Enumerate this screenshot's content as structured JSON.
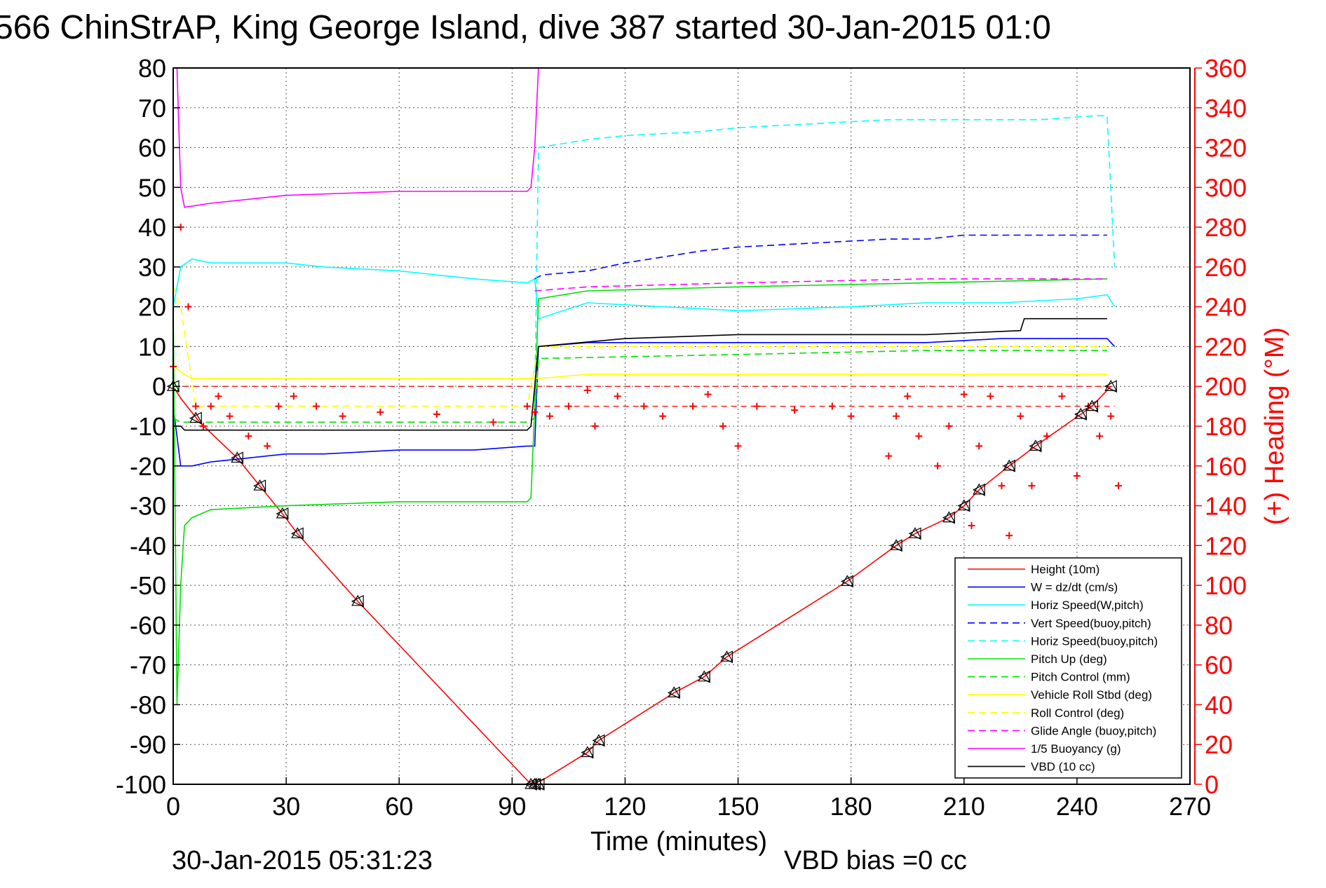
{
  "chart_data": {
    "type": "line",
    "title": "566 ChinStrAP, King George Island, dive 387 started 30-Jan-2015 01:0",
    "xlabel": "Time (minutes)",
    "ylabel_left": "",
    "ylabel_right": "(+) Heading (°M)",
    "footer_left": "30-Jan-2015 05:31:23",
    "footer_right": "VBD bias =0 cc",
    "xlim": [
      0,
      270
    ],
    "ylim_left": [
      -100,
      80
    ],
    "ylim_right": [
      0,
      360
    ],
    "x_ticks": [
      "0",
      "30",
      "60",
      "90",
      "120",
      "150",
      "180",
      "210",
      "240",
      "270"
    ],
    "y_ticks_left": [
      "80",
      "70",
      "60",
      "50",
      "40",
      "30",
      "20",
      "10",
      "0",
      "-10",
      "-20",
      "-30",
      "-40",
      "-50",
      "-60",
      "-70",
      "-80",
      "-90",
      "-100"
    ],
    "y_ticks_right": [
      "360",
      "340",
      "320",
      "300",
      "280",
      "260",
      "240",
      "220",
      "200",
      "180",
      "160",
      "140",
      "120",
      "100",
      "80",
      "60",
      "40",
      "20",
      "0"
    ],
    "grid": true,
    "legend_position": "bottom-right",
    "colors": {
      "red": "#ff0000",
      "blue": "#0000ff",
      "cyan": "#00ffff",
      "green": "#00e000",
      "yellow": "#ffff00",
      "magenta": "#ff00ff",
      "black": "#000000"
    },
    "series": [
      {
        "name": "Height (10m)",
        "color": "#ff0000",
        "style": "solid",
        "x": [
          0,
          2,
          7,
          17,
          23,
          29,
          33,
          49,
          95,
          98,
          110,
          113,
          133,
          141,
          147,
          179,
          192,
          197,
          206,
          210,
          214,
          222,
          229,
          241,
          244,
          249
        ],
        "y": [
          0,
          -3,
          -9,
          -18,
          -25,
          -32,
          -37,
          -54,
          -100,
          -99,
          -92,
          -89,
          -77,
          -73,
          -68,
          -49,
          -40,
          -37,
          -33,
          -30,
          -26,
          -20,
          -15,
          -7,
          -5,
          0
        ]
      },
      {
        "name": "W = dz/dt (cm/s)",
        "color": "#0000ff",
        "style": "solid",
        "x": [
          0,
          2,
          5,
          10,
          20,
          30,
          40,
          60,
          80,
          94,
          96,
          97,
          110,
          130,
          150,
          180,
          200,
          220,
          240,
          248,
          250
        ],
        "y": [
          -5,
          -20,
          -20,
          -19,
          -18,
          -17,
          -17,
          -16,
          -16,
          -15,
          -15,
          10,
          11,
          11,
          11,
          11,
          11,
          12,
          12,
          12,
          10
        ]
      },
      {
        "name": "Horiz Speed(W,pitch)",
        "color": "#00ffff",
        "style": "solid",
        "x": [
          0,
          2,
          5,
          10,
          20,
          30,
          40,
          60,
          80,
          94,
          96,
          97,
          110,
          130,
          150,
          180,
          200,
          220,
          240,
          248,
          250
        ],
        "y": [
          20,
          30,
          32,
          31,
          31,
          31,
          30,
          29,
          27,
          26,
          27,
          17,
          21,
          20,
          19,
          20,
          21,
          21,
          22,
          23,
          20
        ]
      },
      {
        "name": "Vert Speed(buoy,pitch)",
        "color": "#0000ff",
        "style": "dashed",
        "x": [
          96,
          98,
          110,
          120,
          140,
          150,
          170,
          190,
          200,
          210,
          220,
          240,
          248
        ],
        "y": [
          27,
          28,
          29,
          31,
          34,
          35,
          36,
          37,
          37,
          38,
          38,
          38,
          38
        ]
      },
      {
        "name": "Horiz Speed(buoy,pitch)",
        "color": "#00ffff",
        "style": "dashed",
        "x": [
          96,
          97,
          110,
          120,
          140,
          150,
          170,
          190,
          210,
          230,
          245,
          248,
          250
        ],
        "y": [
          -5,
          60,
          62,
          63,
          64,
          65,
          66,
          67,
          67,
          67,
          68,
          68,
          30
        ]
      },
      {
        "name": "Pitch Up (deg)",
        "color": "#00e000",
        "style": "solid",
        "x": [
          0,
          1,
          2,
          3,
          5,
          10,
          30,
          60,
          94,
          95,
          96,
          97,
          110,
          150,
          200,
          248
        ],
        "y": [
          20,
          -80,
          -50,
          -35,
          -33,
          -31,
          -30,
          -29,
          -29,
          -28,
          -5,
          22,
          24,
          25,
          26,
          27
        ]
      },
      {
        "name": "Pitch Control (mm)",
        "color": "#00e000",
        "style": "dashed",
        "x": [
          0,
          2,
          94,
          96,
          97,
          150,
          200,
          248
        ],
        "y": [
          -8,
          -9,
          -9,
          -8,
          7,
          8,
          9,
          9
        ]
      },
      {
        "name": "Vehicle Roll Stbd (deg)",
        "color": "#ffff00",
        "style": "solid",
        "x": [
          0,
          3,
          5,
          30,
          60,
          94,
          97,
          110,
          150,
          200,
          248
        ],
        "y": [
          5,
          3,
          2,
          2,
          2,
          2,
          2,
          3,
          3,
          3,
          3
        ]
      },
      {
        "name": "Roll Control (deg)",
        "color": "#ffff00",
        "style": "dashed",
        "x": [
          0,
          2,
          6,
          30,
          94,
          97,
          150,
          248
        ],
        "y": [
          25,
          20,
          -5,
          -5,
          -5,
          10,
          10,
          10
        ]
      },
      {
        "name": "Glide Angle (buoy,pitch)",
        "color": "#ff00ff",
        "style": "dashed",
        "x": [
          96,
          110,
          150,
          200,
          248
        ],
        "y": [
          24,
          25,
          26,
          27,
          27
        ]
      },
      {
        "name": "1/5 Buoyancy (g)",
        "color": "#ff00ff",
        "style": "solid",
        "x": [
          1,
          2,
          3,
          10,
          30,
          60,
          94,
          95,
          96,
          97
        ],
        "y": [
          80,
          50,
          45,
          46,
          48,
          49,
          49,
          50,
          60,
          80
        ]
      },
      {
        "name": "VBD (10 cc)",
        "color": "#000000",
        "style": "solid",
        "x": [
          0,
          2,
          3,
          94,
          95,
          96,
          97,
          120,
          150,
          180,
          200,
          225,
          226,
          248
        ],
        "y": [
          -10,
          -10,
          -11,
          -11,
          -10,
          0,
          10,
          12,
          13,
          13,
          13,
          14,
          17,
          17
        ]
      },
      {
        "name": "Heading",
        "color": "#ff0000",
        "style": "markers",
        "axis": "right",
        "x": [
          0,
          2,
          4,
          6,
          8,
          10,
          12,
          15,
          20,
          25,
          28,
          32,
          38,
          45,
          55,
          70,
          85,
          94,
          96,
          100,
          105,
          110,
          112,
          118,
          125,
          130,
          138,
          142,
          146,
          150,
          155,
          165,
          175,
          180,
          190,
          192,
          195,
          198,
          203,
          206,
          210,
          212,
          214,
          217,
          220,
          222,
          225,
          228,
          232,
          236,
          240,
          243,
          246,
          249,
          251
        ],
        "y": [
          210,
          280,
          240,
          190,
          180,
          190,
          195,
          185,
          175,
          170,
          190,
          195,
          190,
          185,
          187,
          186,
          182,
          190,
          187,
          185,
          190,
          198,
          180,
          195,
          190,
          185,
          190,
          196,
          180,
          170,
          190,
          188,
          190,
          185,
          165,
          185,
          195,
          175,
          160,
          180,
          196,
          130,
          170,
          195,
          150,
          125,
          185,
          150,
          175,
          195,
          155,
          190,
          175,
          185,
          150
        ]
      }
    ],
    "triangle_markers": {
      "x": [
        0,
        6,
        17,
        23,
        29,
        33,
        49,
        95,
        96,
        97,
        110,
        113,
        133,
        141,
        147,
        179,
        192,
        197,
        206,
        210,
        214,
        222,
        229,
        241,
        244,
        249
      ],
      "y": [
        0,
        -8,
        -18,
        -25,
        -32,
        -37,
        -54,
        -100,
        -100,
        -100,
        -92,
        -89,
        -77,
        -73,
        -68,
        -49,
        -40,
        -37,
        -33,
        -30,
        -26,
        -20,
        -15,
        -7,
        -5,
        0
      ]
    }
  }
}
